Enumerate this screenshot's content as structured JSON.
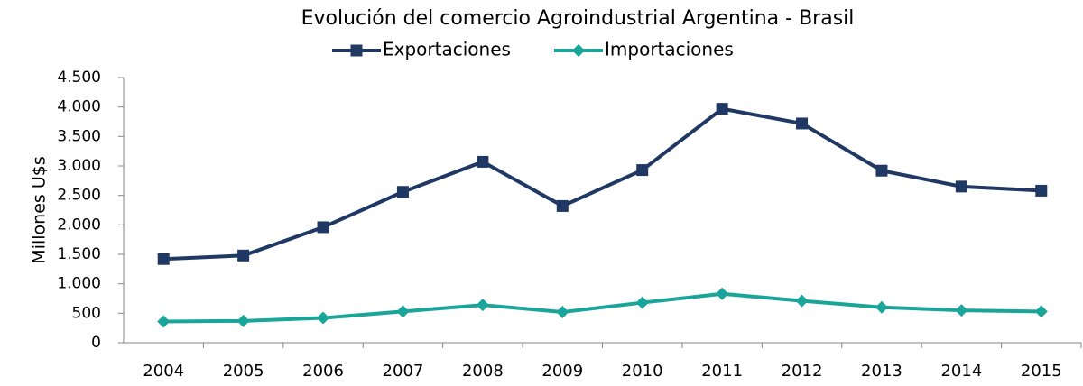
{
  "chart_data": {
    "type": "line",
    "title": "Evolución del comercio Agroindustrial Argentina - Brasil",
    "ylabel": "Millones U$s",
    "categories": [
      "2004",
      "2005",
      "2006",
      "2007",
      "2008",
      "2009",
      "2010",
      "2011",
      "2012",
      "2013",
      "2014",
      "2015"
    ],
    "series": [
      {
        "name": "Exportaciones",
        "color": "#1f3864",
        "marker": "square",
        "values": [
          1420,
          1480,
          1960,
          2560,
          3070,
          2320,
          2930,
          3970,
          3720,
          2920,
          2650,
          2580
        ]
      },
      {
        "name": "Importaciones",
        "color": "#1aa59a",
        "marker": "diamond",
        "values": [
          360,
          370,
          420,
          530,
          640,
          520,
          680,
          830,
          710,
          600,
          550,
          530
        ]
      }
    ],
    "ylim": [
      0,
      4500
    ],
    "yticks": [
      0,
      500,
      {
        "value": 1000,
        "label": "1.000"
      },
      {
        "value": 1500,
        "label": "1.500"
      },
      {
        "value": 2000,
        "label": "2.000"
      },
      {
        "value": 2500,
        "label": "2.500"
      },
      {
        "value": 3000,
        "label": "3.000"
      },
      {
        "value": 3500,
        "label": "3.500"
      },
      {
        "value": 4000,
        "label": "4.000"
      },
      {
        "value": 4500,
        "label": "4.500"
      }
    ],
    "grid": false,
    "legend": "top"
  }
}
